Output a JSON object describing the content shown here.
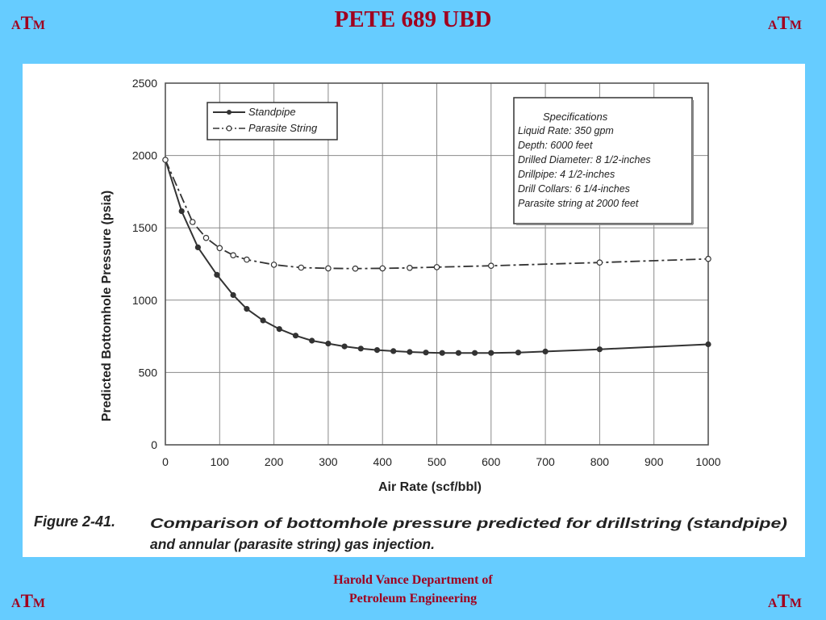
{
  "slide": {
    "title": "PETE 689 UBD",
    "logo": {
      "a": "A",
      "t": "T",
      "m": "M"
    },
    "footer_line1": "Harold Vance Department of",
    "footer_line2": "Petroleum Engineering",
    "colors": {
      "background": "#66ccff",
      "title": "#a0001e",
      "panel": "#ffffff"
    }
  },
  "chart_data": {
    "type": "line",
    "xlabel": "Air Rate (scf/bbl)",
    "ylabel": "Predicted Bottomhole Pressure (psia)",
    "xlim": [
      0,
      1000
    ],
    "ylim": [
      0,
      2500
    ],
    "xticks": [
      0,
      100,
      200,
      300,
      400,
      500,
      600,
      700,
      800,
      900,
      1000
    ],
    "yticks": [
      0,
      500,
      1000,
      1500,
      2000,
      2500
    ],
    "grid": true,
    "legend_position": "top-left",
    "series": [
      {
        "name": "Standpipe",
        "style": "solid",
        "marker": "filled-circle",
        "x": [
          0,
          30,
          60,
          95,
          125,
          150,
          180,
          210,
          240,
          270,
          300,
          330,
          360,
          390,
          420,
          450,
          480,
          510,
          540,
          570,
          600,
          650,
          700,
          800,
          1000
        ],
        "y": [
          1970,
          1615,
          1365,
          1175,
          1035,
          940,
          860,
          800,
          755,
          720,
          700,
          680,
          665,
          655,
          648,
          642,
          638,
          635,
          635,
          635,
          635,
          638,
          645,
          660,
          695
        ]
      },
      {
        "name": "Parasite String",
        "style": "dash-dot",
        "marker": "open-circle",
        "x": [
          0,
          50,
          75,
          100,
          125,
          150,
          200,
          250,
          300,
          350,
          400,
          450,
          500,
          600,
          800,
          1000
        ],
        "y": [
          1970,
          1540,
          1430,
          1360,
          1310,
          1280,
          1245,
          1225,
          1220,
          1218,
          1220,
          1223,
          1228,
          1238,
          1260,
          1285
        ]
      }
    ],
    "specifications": {
      "title": "Specifications",
      "lines": [
        "Liquid Rate:  350 gpm",
        "Depth:  6000 feet",
        "Drilled Diameter:  8 1/2-inches",
        "Drillpipe:  4 1/2-inches",
        "Drill Collars:  6 1/4-inches",
        "Parasite string at 2000 feet"
      ]
    },
    "caption": {
      "label": "Figure 2-41.",
      "line1": "Comparison of bottomhole pressure predicted for drillstring (standpipe)",
      "line2": "and annular (parasite string) gas injection."
    }
  }
}
